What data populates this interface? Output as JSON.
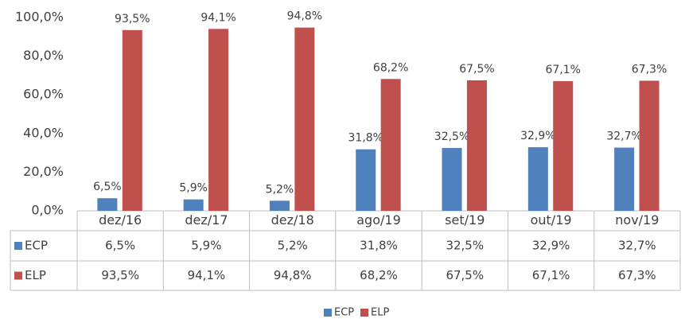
{
  "chart_data": {
    "type": "bar",
    "categories": [
      "dez/16",
      "dez/17",
      "dez/18",
      "ago/19",
      "set/19",
      "out/19",
      "nov/19"
    ],
    "series": [
      {
        "name": "ECP",
        "color": "#4f81bd",
        "values": [
          6.5,
          5.9,
          5.2,
          31.8,
          32.5,
          32.9,
          32.7
        ],
        "value_labels": [
          "6,5%",
          "5,9%",
          "5,2%",
          "31,8%",
          "32,5%",
          "32,9%",
          "32,7%"
        ]
      },
      {
        "name": "ELP",
        "color": "#c0504d",
        "values": [
          93.5,
          94.1,
          94.8,
          68.2,
          67.5,
          67.1,
          67.3
        ],
        "value_labels": [
          "93,5%",
          "94,1%",
          "94,8%",
          "68,2%",
          "67,5%",
          "67,1%",
          "67,3%"
        ]
      }
    ],
    "ylim": [
      0,
      100
    ],
    "yticks": [
      {
        "value": 0,
        "label": "0,0%"
      },
      {
        "value": 20,
        "label": "20,0%"
      },
      {
        "value": 40,
        "label": "40,0%"
      },
      {
        "value": 60,
        "label": "60,0%"
      },
      {
        "value": 80,
        "label": "80,0%"
      },
      {
        "value": 100,
        "label": "100,0%"
      }
    ],
    "grid": false,
    "data_table": true,
    "legend": "bottom"
  }
}
